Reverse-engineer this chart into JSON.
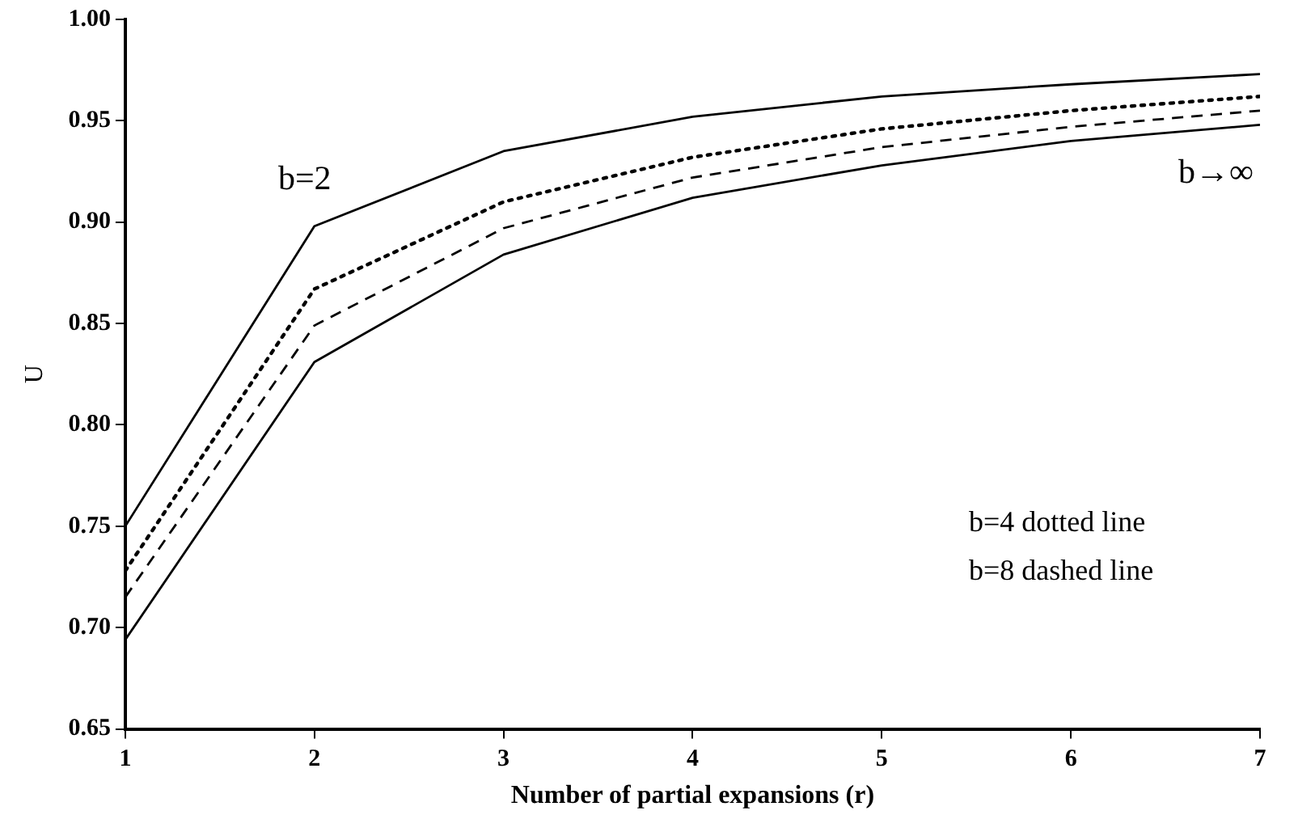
{
  "chart_data": {
    "type": "line",
    "xlabel": "Number of partial expansions (r)",
    "ylabel": "U",
    "x": [
      1,
      2,
      3,
      4,
      5,
      6,
      7
    ],
    "xlim": [
      1,
      7
    ],
    "xticks": [
      1,
      2,
      3,
      4,
      5,
      6,
      7
    ],
    "ylim": [
      0.65,
      1.0
    ],
    "yticks": [
      {
        "value": 0.65,
        "label": "0.65"
      },
      {
        "value": 0.7,
        "label": "0.70"
      },
      {
        "value": 0.75,
        "label": "0.75"
      },
      {
        "value": 0.8,
        "label": "0.80"
      },
      {
        "value": 0.85,
        "label": "0.85"
      },
      {
        "value": 0.9,
        "label": "0.90"
      },
      {
        "value": 0.95,
        "label": "0.95"
      },
      {
        "value": 1.0,
        "label": "1.00"
      }
    ],
    "grid": false,
    "marker": "none",
    "legend": false,
    "annotations": [
      "b=4 dotted line",
      "b=8 dashed line"
    ],
    "series": [
      {
        "name": "b=2",
        "color": "#000000",
        "line_style": "solid",
        "values": [
          0.75,
          0.898,
          0.935,
          0.952,
          0.962,
          0.968,
          0.973
        ]
      },
      {
        "color": "#000000",
        "line_style": "dotted",
        "values": [
          0.728,
          0.867,
          0.91,
          0.932,
          0.946,
          0.955,
          0.962
        ]
      },
      {
        "color": "#000000",
        "line_style": "dashed",
        "values": [
          0.715,
          0.849,
          0.897,
          0.922,
          0.937,
          0.947,
          0.955
        ]
      },
      {
        "name": "b→∞",
        "color": "#000000",
        "line_style": "solid",
        "values": [
          0.694,
          0.831,
          0.884,
          0.912,
          0.928,
          0.94,
          0.948
        ]
      }
    ]
  }
}
